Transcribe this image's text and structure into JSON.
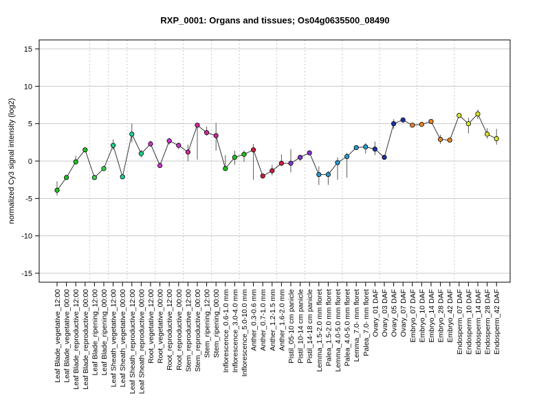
{
  "chart_data": {
    "type": "line",
    "title": "RXP_0001: Organs and tissues; Os04g0635500_08490",
    "xlabel": "",
    "ylabel": "normalized Cy3 signal intensity (log2)",
    "ylim": [
      -16.2,
      16.2
    ],
    "yticks": [
      -15,
      -10,
      -5,
      0,
      5,
      10,
      15
    ],
    "grid": "horizontal at y ticks; vertical dotted group separators",
    "group_boundaries_after_index": [
      3,
      5,
      7,
      10,
      13,
      16,
      19,
      23,
      26,
      30,
      34,
      38,
      42
    ],
    "categories": [
      "Leaf Blade_vegetative_12:00",
      "Leaf Blade_vegetative_00:00",
      "Leaf Blade_reproductive_12:00",
      "Leaf Blade_reproductive_00:00",
      "Leaf Blade_ripening_12:00",
      "Leaf Blade_ripening_00:00",
      "Leaf Sheath_vegetative_12:00",
      "Leaf Sheath_vegetative_00:00",
      "Leaf Sheath_reproductive_12:00",
      "Leaf Sheath_reproductive_00:00",
      "Root_vegetative_12:00",
      "Root_vegetative_00:00",
      "Root_reproductive_12:00",
      "Root_reproductive_00:00",
      "Stem_reproductive_12:00",
      "Stem_reproductive_00:00",
      "Stem_ripening_12:00",
      "Stem_ripening_00:00",
      "Inflorescence_0.6-1.0 mm",
      "Inflorescence_3.0-4.0 mm",
      "Inflorescence_5.0-10.0 mm",
      "Anther_0.3-0.6 mm",
      "Anther_0.7-1.0 mm",
      "Anther_1.2-1.5 mm",
      "Anther_1.6-2.0 mm",
      "Pistil_05-10 cm panicle",
      "Pistil_10-14 cm panicle",
      "Pistil_14-18 cm panicle",
      "Lemma_1.5-2.0 mm floret",
      "Palea_1.5-2.0 mm floret",
      "Lemma_4.0-5.0 mm floret",
      "Palea_4.0-5.0 mm floret",
      "Lemma_7.0- mm floret",
      "Palea_7.0- mm floret",
      "Ovary_01 DAF",
      "Ovary_03 DAF",
      "Ovary_05 DAF",
      "Ovary_07 DAF",
      "Embryo_07 DAF",
      "Embryo_10 DAF",
      "Embryo_14 DAF",
      "Embryo_28 DAF",
      "Embryo_42 DAF",
      "Endosperm_07 DAF",
      "Endosperm_10 DAF",
      "Endosperm_14 DAF",
      "Endosperm_28 DAF",
      "Endosperm_42 DAF"
    ],
    "values": [
      -3.9,
      -2.2,
      -0.1,
      1.5,
      -2.2,
      -1.0,
      2.1,
      -2.1,
      3.6,
      1.0,
      2.3,
      -0.6,
      2.7,
      2.1,
      1.2,
      4.8,
      3.8,
      3.4,
      -1.0,
      0.5,
      0.9,
      1.5,
      -2.0,
      -1.3,
      -0.3,
      -0.3,
      0.5,
      1.1,
      -1.8,
      -1.8,
      -0.2,
      0.6,
      1.8,
      1.9,
      1.6,
      0.5,
      5.0,
      5.5,
      4.8,
      4.9,
      5.3,
      2.9,
      2.8,
      6.1,
      5.0,
      6.3,
      3.6,
      3.0
    ],
    "err_low": [
      -4.6,
      -2.2,
      -0.5,
      1.5,
      -2.2,
      -1.2,
      1.5,
      -2.1,
      2.5,
      0.5,
      1.9,
      -0.8,
      2.2,
      1.6,
      0.0,
      0.2,
      3.4,
      1.4,
      -1.3,
      -0.5,
      -0.1,
      -2.5,
      -2.1,
      -1.9,
      -0.6,
      -1.5,
      0.0,
      0.8,
      -3.2,
      -3.2,
      -2.5,
      -2.2,
      1.6,
      1.0,
      0.8,
      0.2,
      4.3,
      5.1,
      4.6,
      4.6,
      5.2,
      2.3,
      2.7,
      5.8,
      3.7,
      5.6,
      3.0,
      2.2
    ],
    "err_high": [
      -2.7,
      -1.9,
      0.7,
      1.7,
      -1.9,
      -0.7,
      2.9,
      -1.8,
      5.0,
      1.5,
      2.7,
      -0.2,
      3.1,
      2.5,
      2.2,
      5.0,
      4.6,
      5.1,
      0.8,
      1.4,
      1.4,
      2.3,
      -1.7,
      -0.5,
      0.9,
      1.6,
      0.8,
      1.3,
      -0.7,
      -1.3,
      0.5,
      1.1,
      2.0,
      2.4,
      2.6,
      0.8,
      5.6,
      5.8,
      5.1,
      5.2,
      5.6,
      3.5,
      3.0,
      6.4,
      5.8,
      6.9,
      4.4,
      4.3
    ],
    "colors": [
      "#1fc21f",
      "#1fc21f",
      "#1fc21f",
      "#1fc21f",
      "#39d24a",
      "#39d24a",
      "#1fd08a",
      "#1fd08a",
      "#1fd08a",
      "#1fd08a",
      "#cc33cc",
      "#cc33cc",
      "#cc33cc",
      "#cc33cc",
      "#cc2a99",
      "#cc2a99",
      "#cc2a99",
      "#cc2a99",
      "#1fc21f",
      "#1fc21f",
      "#1fc21f",
      "#cc1f3f",
      "#cc1f3f",
      "#cc1f3f",
      "#cc1f3f",
      "#8833cc",
      "#8833cc",
      "#8833cc",
      "#2a99cc",
      "#2a99cc",
      "#2a99cc",
      "#2a99cc",
      "#2a99cc",
      "#2a99cc",
      "#1f33aa",
      "#1f33aa",
      "#1f33aa",
      "#1f33aa",
      "#e6862a",
      "#e6862a",
      "#e6862a",
      "#e6862a",
      "#e6862a",
      "#d6e62a",
      "#d6e62a",
      "#d6e62a",
      "#d6e62a",
      "#d6e62a"
    ],
    "line_color": "#333333"
  }
}
